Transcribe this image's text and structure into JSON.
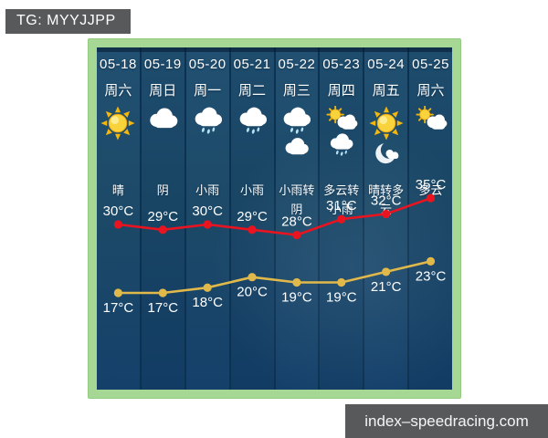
{
  "watermarks": {
    "tg_badge": "TG: MYYJJPP",
    "site": "index–speedracing.com"
  },
  "colors": {
    "panel_border_green": "#a7d794",
    "column_teal": "#1d4a68",
    "column_separator": "#0d3150",
    "badge_bg": "#58595b",
    "text_white": "#ffffff",
    "high_temp_red": "#ea1420",
    "low_temp_yellow": "#e0b94a",
    "sun_yellow": "#f9d33c",
    "rain_drop_blue": "#b5e0f6"
  },
  "forecast": {
    "days": [
      {
        "date": "05-18",
        "weekday": "周六",
        "icons": [
          "sun"
        ],
        "condition": "晴"
      },
      {
        "date": "05-19",
        "weekday": "周日",
        "icons": [
          "cloud"
        ],
        "condition": "阴"
      },
      {
        "date": "05-20",
        "weekday": "周一",
        "icons": [
          "rain"
        ],
        "condition": "小雨"
      },
      {
        "date": "05-21",
        "weekday": "周二",
        "icons": [
          "rain"
        ],
        "condition": "小雨"
      },
      {
        "date": "05-22",
        "weekday": "周三",
        "icons": [
          "rain",
          "cloud"
        ],
        "condition": "小雨转阴"
      },
      {
        "date": "05-23",
        "weekday": "周四",
        "icons": [
          "sun-cloud",
          "rain"
        ],
        "condition": "多云转小雨"
      },
      {
        "date": "05-24",
        "weekday": "周五",
        "icons": [
          "sun",
          "moon-cloud"
        ],
        "condition": "晴转多云"
      },
      {
        "date": "05-25",
        "weekday": "周六",
        "icons": [
          "sun-cloud"
        ],
        "condition": "多云"
      }
    ]
  },
  "chart_data": {
    "type": "line",
    "categories": [
      "05-18",
      "05-19",
      "05-20",
      "05-21",
      "05-22",
      "05-23",
      "05-24",
      "05-25"
    ],
    "series": [
      {
        "name": "high",
        "unit": "°C",
        "color": "#ea1420",
        "label_position": "above",
        "values": [
          30,
          29,
          30,
          29,
          28,
          31,
          32,
          35
        ]
      },
      {
        "name": "low",
        "unit": "°C",
        "color": "#e0b94a",
        "label_position": "below",
        "values": [
          17,
          17,
          18,
          20,
          19,
          19,
          21,
          23
        ]
      }
    ],
    "title": "",
    "xlabel": "",
    "ylabel": "",
    "grid": false,
    "legend": false,
    "ylim": [
      15,
      37
    ]
  }
}
